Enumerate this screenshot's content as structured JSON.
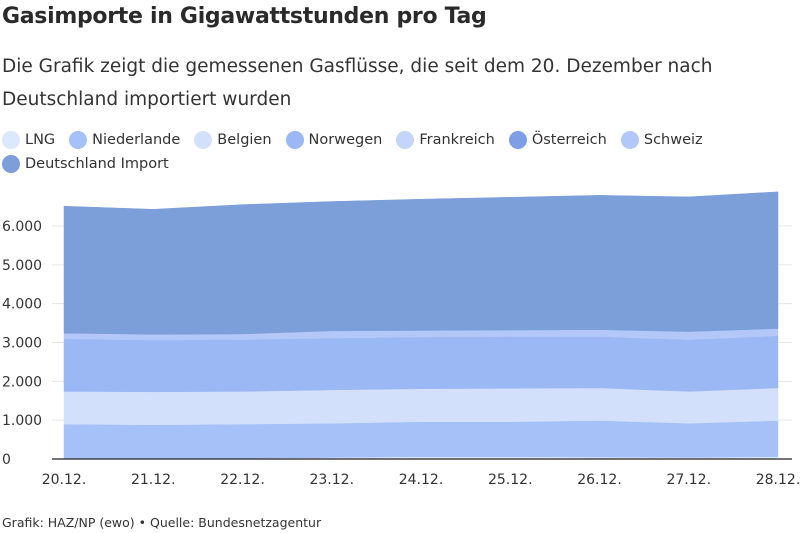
{
  "header": {
    "title": "Gasimporte in Gigawattstunden pro Tag",
    "subtitle": "Die Grafik zeigt die gemessenen Gasflüsse, die seit dem 20. Dezember nach Deutschland importiert wurden"
  },
  "footer": {
    "source": "Grafik: HAZ/NP (ewo) • Quelle: Bundesnetzagentur"
  },
  "chart_data": {
    "type": "area",
    "categories": [
      "20.12.",
      "21.12.",
      "22.12.",
      "23.12.",
      "24.12.",
      "25.12.",
      "26.12.",
      "27.12.",
      "28.12."
    ],
    "yticks": [
      "0",
      "1.000",
      "2.000",
      "3.000",
      "4.000",
      "5.000",
      "6.000"
    ],
    "ylim": [
      0,
      7000
    ],
    "grid": true,
    "legend_position": "top",
    "series": [
      {
        "name": "LNG",
        "color": "#dce8fb",
        "values": [
          20,
          20,
          20,
          40,
          60,
          60,
          50,
          40,
          60
        ]
      },
      {
        "name": "Niederlande",
        "color": "#a5c1f7",
        "values": [
          880,
          860,
          880,
          880,
          900,
          900,
          940,
          880,
          930
        ]
      },
      {
        "name": "Belgien",
        "color": "#d3e0fc",
        "values": [
          840,
          850,
          840,
          860,
          850,
          860,
          840,
          820,
          840
        ]
      },
      {
        "name": "Norwegen",
        "color": "#9bb8f5",
        "values": [
          1350,
          1330,
          1330,
          1330,
          1330,
          1330,
          1320,
          1330,
          1340
        ]
      },
      {
        "name": "Frankreich",
        "color": "#c4d5fb",
        "values": [
          0,
          0,
          0,
          0,
          0,
          0,
          0,
          0,
          0
        ]
      },
      {
        "name": "Österreich",
        "color": "#7e9fe3",
        "values": [
          0,
          0,
          0,
          0,
          0,
          0,
          0,
          0,
          0
        ]
      },
      {
        "name": "Schweiz",
        "color": "#b3c8f9",
        "values": [
          150,
          150,
          150,
          190,
          170,
          170,
          180,
          210,
          190
        ]
      },
      {
        "name": "Deutschland Import",
        "color": "#7c9ed9",
        "values": [
          3270,
          3220,
          3330,
          3330,
          3380,
          3420,
          3460,
          3470,
          3520
        ]
      }
    ]
  }
}
